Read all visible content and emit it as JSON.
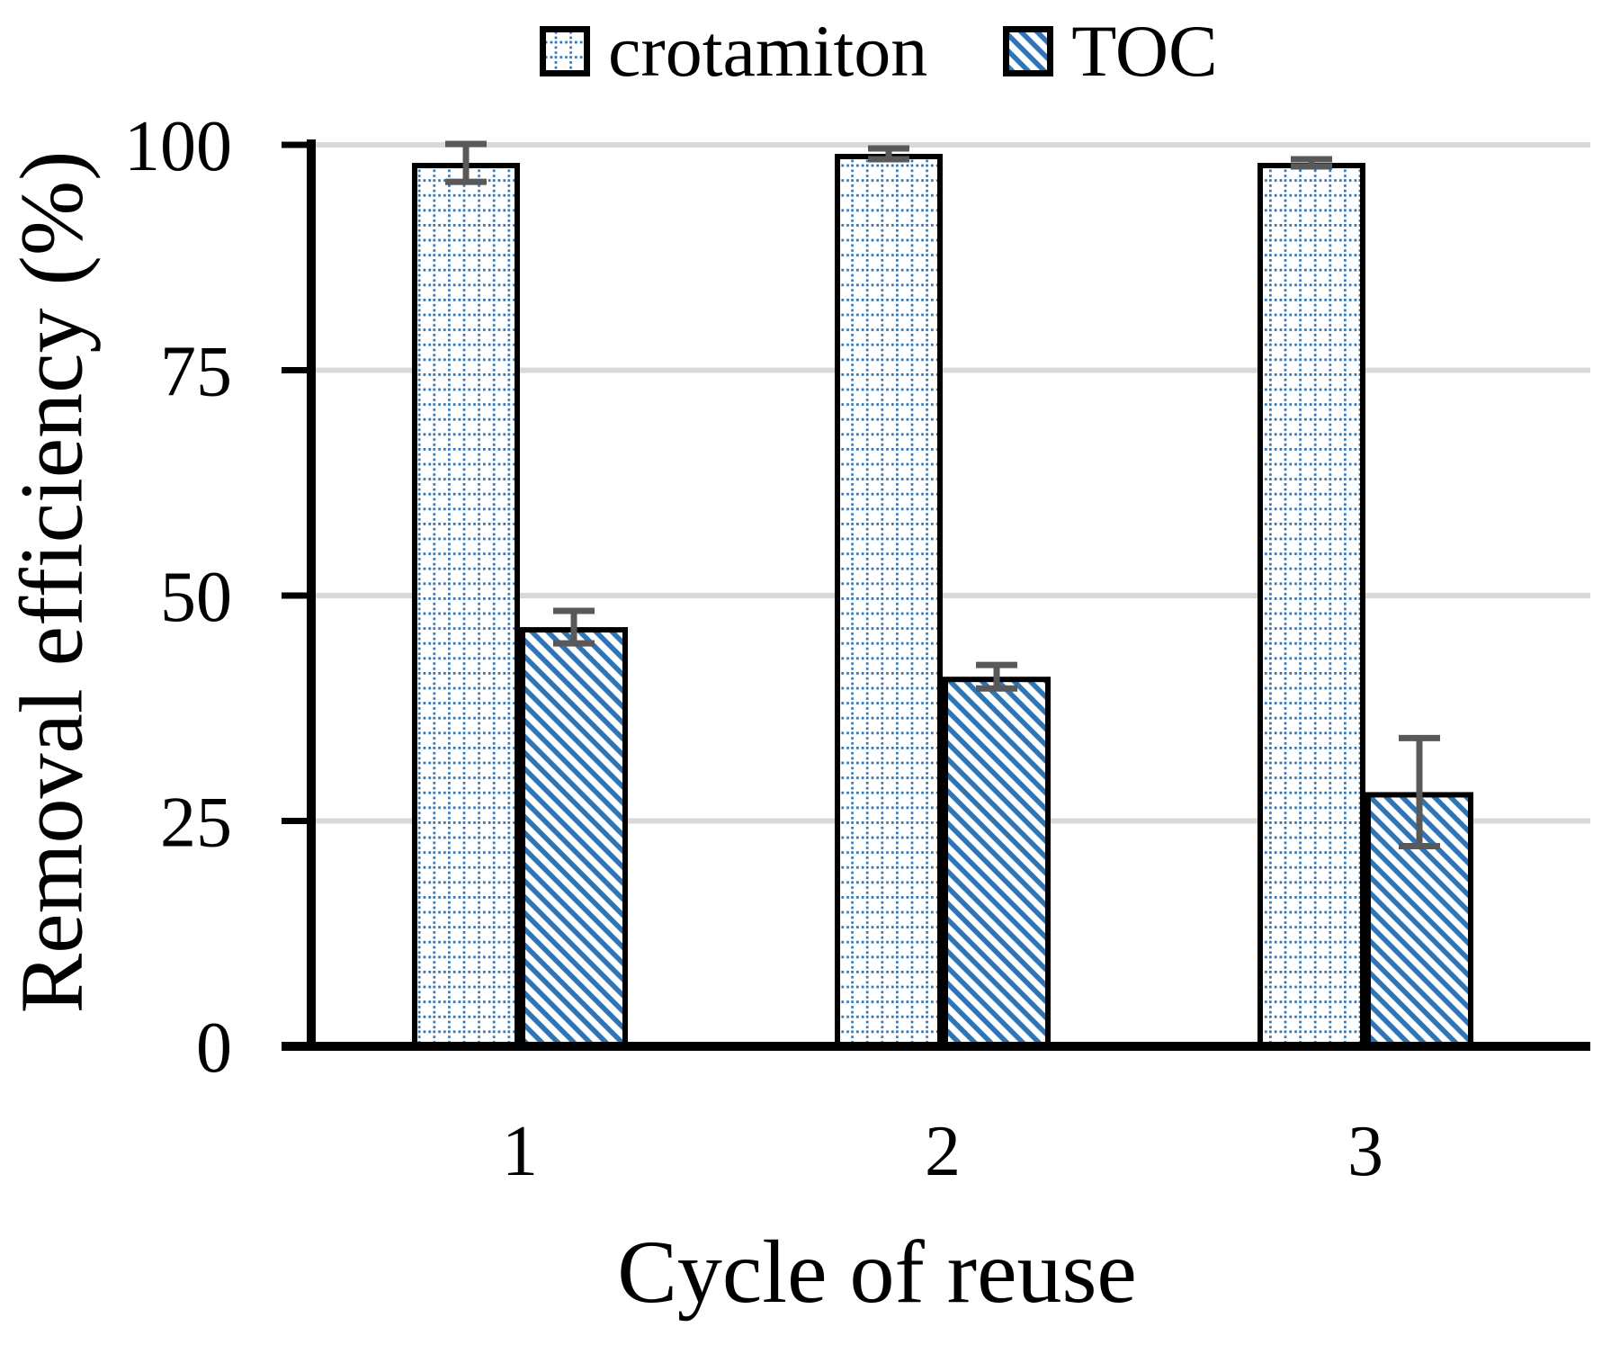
{
  "legend": {
    "items": [
      {
        "label": "crotamiton",
        "pattern": "dotted-grid"
      },
      {
        "label": "TOC",
        "pattern": "diagonal-stripes"
      }
    ]
  },
  "chart_data": {
    "type": "bar",
    "title": "",
    "categories": [
      "1",
      "2",
      "3"
    ],
    "series": [
      {
        "name": "crotamiton",
        "pattern": "dotted-grid",
        "values": [
          98,
          99,
          98
        ],
        "error_bars": [
          2.1,
          0.6,
          0.4
        ]
      },
      {
        "name": "TOC",
        "pattern": "diagonal-stripes",
        "values": [
          46.5,
          41,
          28.2
        ],
        "error_bars": [
          1.8,
          1.3,
          6.0
        ]
      }
    ],
    "xlabel": "Cycle of reuse",
    "ylabel": "Removal efficiency (%)",
    "yticks": [
      0,
      25,
      50,
      75,
      100
    ],
    "ylim": [
      0,
      100
    ],
    "grid": "horizontal",
    "legend_position": "top-center",
    "colors": {
      "pattern_blue": "#2E75B6",
      "bar_border": "#000000",
      "error_bar": "#595959",
      "gridline": "#D9D9D9",
      "axis": "#000000",
      "background": "#FFFFFF"
    }
  }
}
